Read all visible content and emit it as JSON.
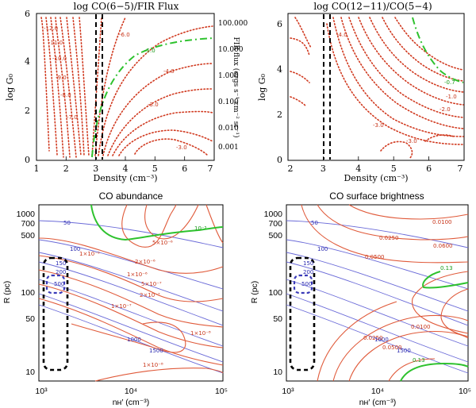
{
  "chart_data": [
    {
      "type": "contour",
      "title": "log CO(6−5)/FIR Flux",
      "xlabel": "Density (cm⁻³)",
      "ylabel": "log G₀",
      "y2label": "FIR flux (ergs s⁻¹ cm⁻² sr⁻¹)",
      "xlim": [
        1,
        7
      ],
      "ylim": [
        0,
        6
      ],
      "xticks": [
        "1",
        "2",
        "3",
        "4",
        "5",
        "6",
        "7"
      ],
      "yticks": [
        "0",
        "2",
        "4",
        "6"
      ],
      "y2ticks": [
        "100.000",
        "10.000",
        "1.000",
        "0.100",
        "0.010",
        "0.001"
      ],
      "contour_labels": [
        "-12.0",
        "-11.0",
        "-10.0",
        "-9.0",
        "-8.0",
        "-7.0",
        "-6.0",
        "-5.0",
        "-4.0",
        "-3.0",
        "-3.0"
      ],
      "highlight_contour": "-5.0",
      "density_band": [
        3.0,
        3.2
      ]
    },
    {
      "type": "contour",
      "title": "log CO(12−11)/CO(5−4)",
      "xlabel": "Density (cm⁻³)",
      "ylabel": "log G₀",
      "xlim": [
        2,
        7
      ],
      "ylim": [
        0,
        6.5
      ],
      "xticks": [
        "2",
        "3",
        "4",
        "5",
        "6",
        "7"
      ],
      "yticks": [
        "0",
        "2",
        "4",
        "6"
      ],
      "contour_labels": [
        "-0.7",
        "-1.0",
        "-2.0",
        "-3.0",
        "-3.0",
        "-4.0"
      ],
      "highlight_contour": "-0.7",
      "density_band": [
        3.0,
        3.2
      ]
    },
    {
      "type": "contour",
      "title": "CO abundance",
      "xlabel": "nʜ′ (cm⁻³)",
      "ylabel": "R (pc)",
      "xlim": [
        1000,
        100000
      ],
      "ylim": [
        10,
        1000
      ],
      "xticks": [
        "10³",
        "10⁴",
        "10⁵"
      ],
      "yticks": [
        "1000",
        "700",
        "500",
        "100",
        "50",
        "10"
      ],
      "contour_labels_red": [
        "5×10⁻⁶",
        "2×10⁻⁶",
        "1×10⁻⁶",
        "5×10⁻⁷",
        "2×10⁻⁷",
        "1×10⁻⁷",
        "1×10⁻⁸",
        "1×10⁻⁹",
        "1×10⁻⁸"
      ],
      "contour_labels_blue": [
        "50",
        "100",
        "150",
        "200",
        "500",
        "1000",
        "1500"
      ],
      "contour_labels_green": [
        "10⁻⁵"
      ]
    },
    {
      "type": "contour",
      "title": "CO surface brightness",
      "xlabel": "nʜ′ (cm⁻³)",
      "ylabel": "R (pc)",
      "xlim": [
        1000,
        100000
      ],
      "ylim": [
        10,
        1000
      ],
      "xticks": [
        "10³",
        "10⁴",
        "10⁵"
      ],
      "yticks": [
        "1000",
        "700",
        "500",
        "100",
        "50",
        "10"
      ],
      "contour_labels_red": [
        "0.0100",
        "0.0250",
        "0.0500",
        "0.0600",
        "0.0250",
        "0.0500",
        "0.0100"
      ],
      "contour_labels_blue": [
        "50",
        "100",
        "150",
        "200",
        "500",
        "1000",
        "1500"
      ],
      "contour_labels_green": [
        "0.13",
        "0.13"
      ]
    }
  ]
}
